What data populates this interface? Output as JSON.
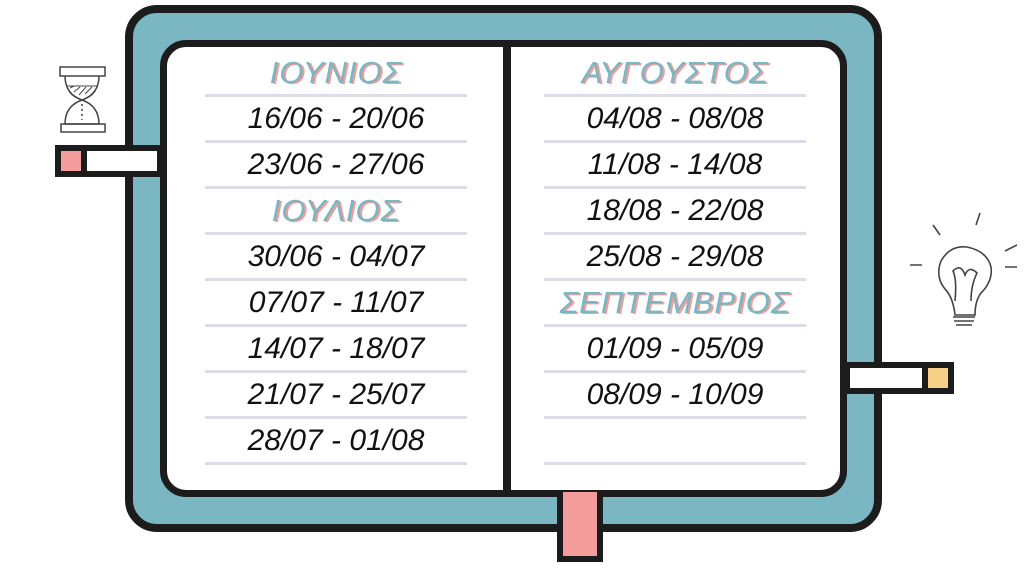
{
  "colors": {
    "cover": "#7ab7c3",
    "accent_pink": "#f29c9c",
    "accent_yellow": "#f7cf86",
    "outline": "#1c1c1c"
  },
  "icons": {
    "left": "hourglass-icon",
    "right": "lightbulb-icon"
  },
  "left_column": [
    {
      "type": "header",
      "text": "ΙΟΥΝΙΟΣ"
    },
    {
      "type": "week",
      "text": "16/06 - 20/06"
    },
    {
      "type": "week",
      "text": "23/06 - 27/06"
    },
    {
      "type": "header",
      "text": "ΙΟΥΛΙΟΣ"
    },
    {
      "type": "week",
      "text": "30/06 - 04/07"
    },
    {
      "type": "week",
      "text": "07/07 - 11/07"
    },
    {
      "type": "week",
      "text": "14/07 - 18/07"
    },
    {
      "type": "week",
      "text": "21/07 - 25/07"
    },
    {
      "type": "week",
      "text": "28/07 - 01/08"
    }
  ],
  "right_column": [
    {
      "type": "header",
      "text": "ΑΥΓΟΥΣΤΟΣ"
    },
    {
      "type": "week",
      "text": "04/08 - 08/08"
    },
    {
      "type": "week",
      "text": "11/08 - 14/08"
    },
    {
      "type": "week",
      "text": "18/08 - 22/08"
    },
    {
      "type": "week",
      "text": "25/08 - 29/08"
    },
    {
      "type": "header",
      "text": "ΣΕΠΤΕΜΒΡΙΟΣ"
    },
    {
      "type": "week",
      "text": "01/09 - 05/09"
    },
    {
      "type": "week",
      "text": "08/09 - 10/09"
    },
    {
      "type": "week",
      "text": ""
    }
  ]
}
